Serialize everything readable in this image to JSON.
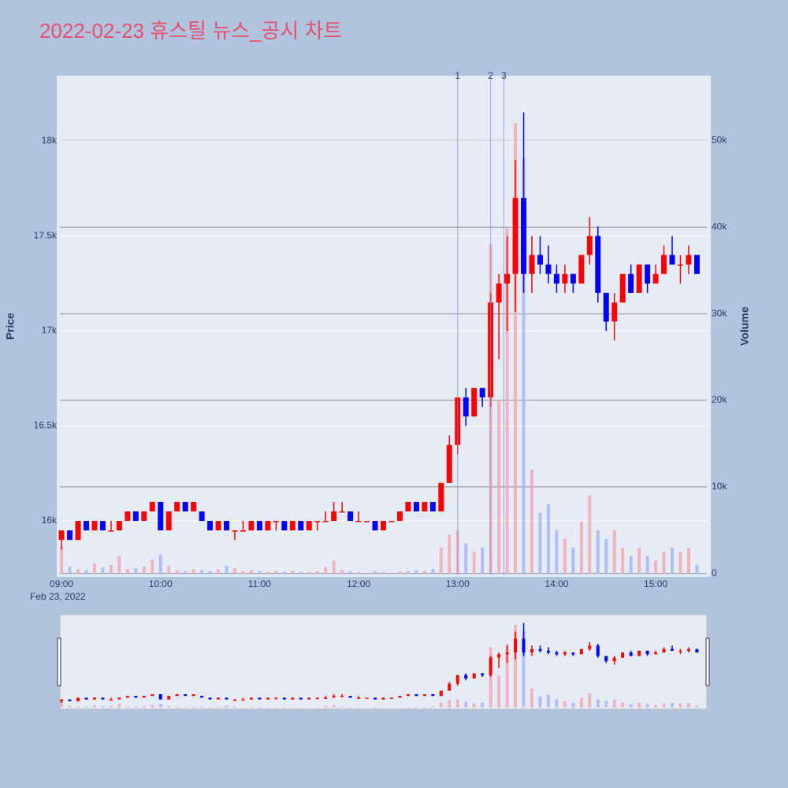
{
  "chart_data": {
    "type": "candlestick",
    "title": "2022-02-23 휴스틸 뉴스_공시 차트",
    "y_title": "Price",
    "y2_title": "Volume",
    "x_date_label": "Feb 23, 2022",
    "x": [
      "2022-02-23 09:00",
      "2022-02-23 09:05",
      "2022-02-23 09:10",
      "2022-02-23 09:15",
      "2022-02-23 09:20",
      "2022-02-23 09:25",
      "2022-02-23 09:30",
      "2022-02-23 09:35",
      "2022-02-23 09:40",
      "2022-02-23 09:45",
      "2022-02-23 09:50",
      "2022-02-23 09:55",
      "2022-02-23 10:00",
      "2022-02-23 10:05",
      "2022-02-23 10:10",
      "2022-02-23 10:15",
      "2022-02-23 10:20",
      "2022-02-23 10:25",
      "2022-02-23 10:30",
      "2022-02-23 10:35",
      "2022-02-23 10:40",
      "2022-02-23 10:45",
      "2022-02-23 10:50",
      "2022-02-23 10:55",
      "2022-02-23 11:00",
      "2022-02-23 11:05",
      "2022-02-23 11:10",
      "2022-02-23 11:15",
      "2022-02-23 11:20",
      "2022-02-23 11:25",
      "2022-02-23 11:30",
      "2022-02-23 11:35",
      "2022-02-23 11:40",
      "2022-02-23 11:45",
      "2022-02-23 11:50",
      "2022-02-23 11:55",
      "2022-02-23 12:00",
      "2022-02-23 12:05",
      "2022-02-23 12:10",
      "2022-02-23 12:15",
      "2022-02-23 12:20",
      "2022-02-23 12:25",
      "2022-02-23 12:30",
      "2022-02-23 12:35",
      "2022-02-23 12:40",
      "2022-02-23 12:45",
      "2022-02-23 12:50",
      "2022-02-23 12:55",
      "2022-02-23 13:00",
      "2022-02-23 13:05",
      "2022-02-23 13:10",
      "2022-02-23 13:15",
      "2022-02-23 13:20",
      "2022-02-23 13:25",
      "2022-02-23 13:30",
      "2022-02-23 13:35",
      "2022-02-23 13:40",
      "2022-02-23 13:45",
      "2022-02-23 13:50",
      "2022-02-23 13:55",
      "2022-02-23 14:00",
      "2022-02-23 14:05",
      "2022-02-23 14:10",
      "2022-02-23 14:15",
      "2022-02-23 14:20",
      "2022-02-23 14:25",
      "2022-02-23 14:30",
      "2022-02-23 14:35",
      "2022-02-23 14:40",
      "2022-02-23 14:45",
      "2022-02-23 14:50",
      "2022-02-23 14:55",
      "2022-02-23 15:00",
      "2022-02-23 15:05",
      "2022-02-23 15:10",
      "2022-02-23 15:15",
      "2022-02-23 15:20",
      "2022-02-23 15:25"
    ],
    "open": [
      15900,
      15950,
      15900,
      16000,
      15950,
      16000,
      15950,
      15950,
      16000,
      16050,
      16000,
      16050,
      16100,
      15950,
      16050,
      16100,
      16050,
      16050,
      16000,
      15950,
      16000,
      15950,
      15950,
      15950,
      16000,
      15950,
      16000,
      16000,
      15950,
      16000,
      15950,
      16000,
      16000,
      16000,
      16050,
      16050,
      16000,
      16000,
      16000,
      15950,
      16000,
      16000,
      16050,
      16100,
      16050,
      16100,
      16050,
      16200,
      16400,
      16650,
      16550,
      16700,
      16650,
      17150,
      17250,
      17300,
      17700,
      17300,
      17400,
      17350,
      17300,
      17250,
      17300,
      17250,
      17400,
      17500,
      17200,
      17050,
      17150,
      17300,
      17200,
      17350,
      17250,
      17300,
      17400,
      17350,
      17350,
      17400
    ],
    "high": [
      15950,
      15950,
      16000,
      16000,
      16000,
      16000,
      16000,
      16000,
      16050,
      16050,
      16050,
      16100,
      16100,
      16050,
      16100,
      16100,
      16100,
      16050,
      16000,
      16000,
      16000,
      15950,
      16000,
      16000,
      16000,
      16000,
      16000,
      16000,
      16000,
      16000,
      16000,
      16000,
      16050,
      16100,
      16100,
      16050,
      16050,
      16000,
      16000,
      16000,
      16000,
      16050,
      16100,
      16100,
      16100,
      16100,
      16200,
      16450,
      16650,
      16700,
      16700,
      16700,
      17200,
      17300,
      17500,
      17900,
      18150,
      17500,
      17500,
      17450,
      17350,
      17350,
      17300,
      17400,
      17600,
      17550,
      17200,
      17200,
      17300,
      17350,
      17350,
      17350,
      17350,
      17450,
      17500,
      17400,
      17450,
      17400
    ],
    "low": [
      15850,
      15900,
      15900,
      15950,
      15950,
      15950,
      15950,
      15950,
      16000,
      16000,
      16000,
      16050,
      15950,
      15950,
      16050,
      16050,
      16050,
      16000,
      15950,
      15950,
      15950,
      15900,
      15950,
      15950,
      15950,
      15950,
      15950,
      15950,
      15950,
      15950,
      15950,
      15950,
      16000,
      16000,
      16050,
      16000,
      16000,
      16000,
      15950,
      15950,
      16000,
      16000,
      16050,
      16050,
      16050,
      16050,
      16050,
      16200,
      16350,
      16500,
      16550,
      16600,
      16600,
      16850,
      17000,
      17100,
      17200,
      17200,
      17300,
      17250,
      17200,
      17200,
      17200,
      17250,
      17350,
      17150,
      17000,
      16950,
      17150,
      17200,
      17200,
      17200,
      17250,
      17300,
      17350,
      17250,
      17300,
      17300
    ],
    "close": [
      15950,
      15900,
      16000,
      15950,
      16000,
      15950,
      15950,
      16000,
      16050,
      16000,
      16050,
      16100,
      15950,
      16050,
      16100,
      16050,
      16100,
      16000,
      15950,
      16000,
      15950,
      15950,
      15950,
      16000,
      15950,
      16000,
      16000,
      15950,
      16000,
      15950,
      16000,
      16000,
      16000,
      16050,
      16050,
      16000,
      16000,
      16000,
      15950,
      16000,
      16000,
      16050,
      16100,
      16050,
      16100,
      16050,
      16200,
      16400,
      16650,
      16550,
      16700,
      16650,
      17150,
      17250,
      17300,
      17700,
      17300,
      17400,
      17350,
      17300,
      17250,
      17300,
      17250,
      17400,
      17500,
      17200,
      17050,
      17150,
      17300,
      17200,
      17350,
      17250,
      17300,
      17400,
      17350,
      17350,
      17400,
      17300
    ],
    "volume": [
      3000,
      800,
      500,
      400,
      1200,
      700,
      1000,
      2000,
      500,
      600,
      800,
      1600,
      2200,
      900,
      400,
      300,
      500,
      400,
      300,
      500,
      900,
      600,
      300,
      400,
      300,
      200,
      300,
      200,
      300,
      200,
      200,
      300,
      800,
      1500,
      400,
      300,
      200,
      100,
      300,
      200,
      100,
      200,
      300,
      400,
      300,
      500,
      3000,
      4500,
      5000,
      3500,
      2500,
      3000,
      38000,
      20000,
      40000,
      52000,
      48000,
      12000,
      7000,
      8000,
      5000,
      4000,
      3000,
      6000,
      9000,
      5000,
      4000,
      5000,
      3000,
      2000,
      3000,
      2000,
      1500,
      2500,
      3000,
      2500,
      3000,
      1000
    ],
    "increasing_color": "#ff0000",
    "decreasing_color": "#0000ff",
    "volume_up_color": "#f4a6b0",
    "volume_down_color": "#a6b4f4",
    "xlim": [
      "2022-02-23 08:59",
      "2022-02-23 15:31"
    ],
    "xticks": [
      {
        "value": "2022-02-23 09:00",
        "label": "09:00"
      },
      {
        "value": "2022-02-23 10:00",
        "label": "10:00"
      },
      {
        "value": "2022-02-23 11:00",
        "label": "11:00"
      },
      {
        "value": "2022-02-23 12:00",
        "label": "12:00"
      },
      {
        "value": "2022-02-23 13:00",
        "label": "13:00"
      },
      {
        "value": "2022-02-23 14:00",
        "label": "14:00"
      },
      {
        "value": "2022-02-23 15:00",
        "label": "15:00"
      }
    ],
    "ylim": [
      15714,
      18344
    ],
    "yticks": [
      {
        "value": 16000,
        "label": "16k"
      },
      {
        "value": 16500,
        "label": "16.5k"
      },
      {
        "value": 17000,
        "label": "17k"
      },
      {
        "value": 17500,
        "label": "17.5k"
      },
      {
        "value": 18000,
        "label": "18k"
      }
    ],
    "y2lim": [
      -200,
      57500
    ],
    "y2ticks": [
      0,
      {
        "value": 10000,
        "label": "10k"
      },
      {
        "value": 20000,
        "label": "20k"
      },
      {
        "value": 30000,
        "label": "30k"
      },
      {
        "value": 40000,
        "label": "40k"
      },
      {
        "value": 50000,
        "label": "50k"
      }
    ],
    "annotations": [
      {
        "x": "2022-02-23 13:00",
        "text": "1"
      },
      {
        "x": "2022-02-23 13:20",
        "text": "2"
      },
      {
        "x": "2022-02-23 13:28",
        "text": "3"
      }
    ],
    "grid": true
  }
}
